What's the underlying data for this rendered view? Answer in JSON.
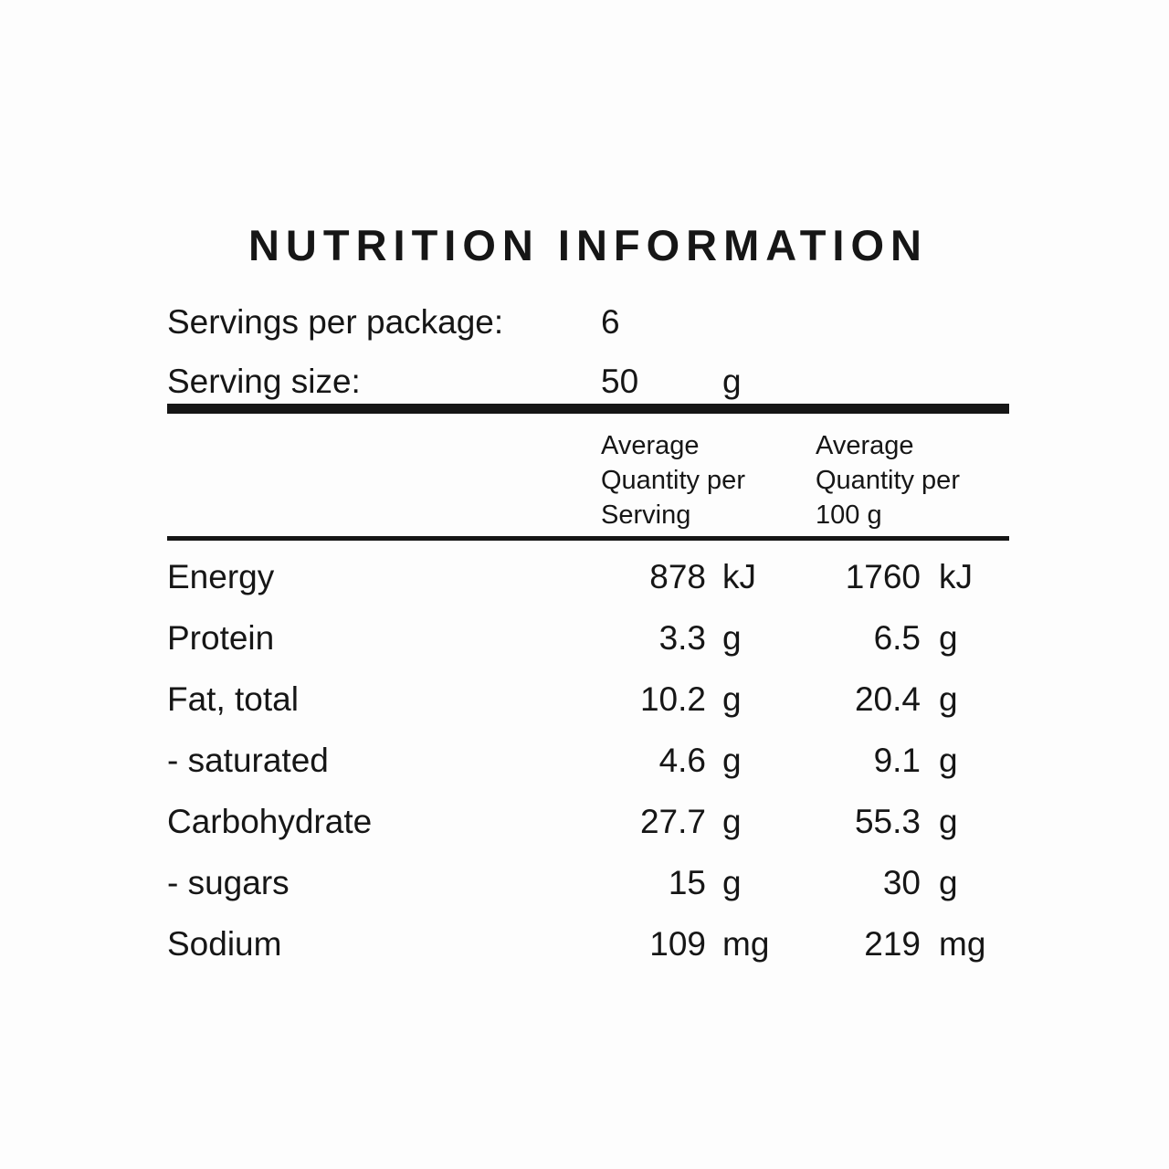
{
  "page": {
    "background": "#fdfdfd",
    "text_color": "#161616"
  },
  "title": "NUTRITION INFORMATION",
  "meta": {
    "servings_label": "Servings per package:",
    "servings_value": "6",
    "serving_size_label": "Serving size:",
    "serving_size_value": "50",
    "serving_size_unit": "g"
  },
  "table": {
    "headers": {
      "per_serving": {
        "full": "Average Quantity per Serving",
        "lines": [
          "Average",
          "Quantity per",
          "Serving"
        ]
      },
      "per_100g": {
        "full": "Average Quantity per 100 g",
        "lines": [
          "Average",
          "Quantity per",
          "100 g"
        ]
      }
    },
    "rows": [
      {
        "label": "Energy",
        "per_serving": "878",
        "per_serving_unit": "kJ",
        "per_100g": "1760",
        "per_100g_unit": "kJ"
      },
      {
        "label": "Protein",
        "per_serving": "3.3",
        "per_serving_unit": "g",
        "per_100g": "6.5",
        "per_100g_unit": "g"
      },
      {
        "label": "Fat, total",
        "per_serving": "10.2",
        "per_serving_unit": "g",
        "per_100g": "20.4",
        "per_100g_unit": "g"
      },
      {
        "label": "- saturated",
        "per_serving": "4.6",
        "per_serving_unit": "g",
        "per_100g": "9.1",
        "per_100g_unit": "g"
      },
      {
        "label": "Carbohydrate",
        "per_serving": "27.7",
        "per_serving_unit": "g",
        "per_100g": "55.3",
        "per_100g_unit": "g"
      },
      {
        "label": "- sugars",
        "per_serving": "15",
        "per_serving_unit": "g",
        "per_100g": "30",
        "per_100g_unit": "g"
      },
      {
        "label": "Sodium",
        "per_serving": "109",
        "per_serving_unit": "mg",
        "per_100g": "219",
        "per_100g_unit": "mg"
      }
    ]
  }
}
